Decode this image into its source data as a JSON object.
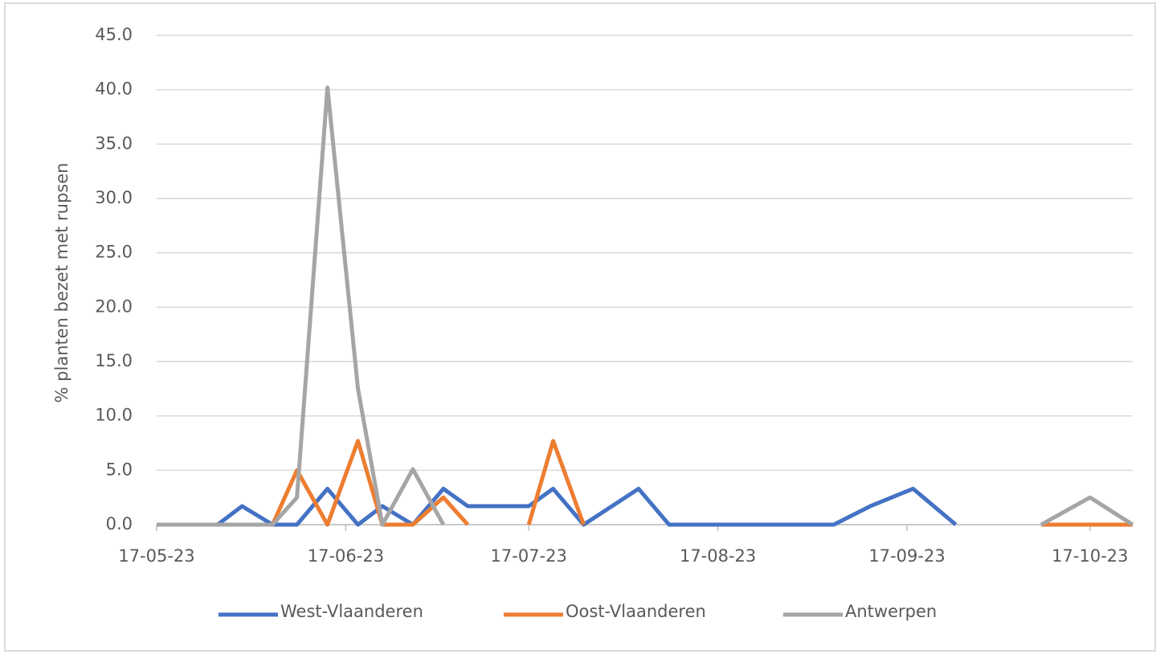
{
  "chart_data": {
    "type": "line",
    "y_label": "% planten bezet met rupsen",
    "x": [
      "2023-05-17",
      "2023-05-27",
      "2023-05-31",
      "2023-06-05",
      "2023-06-09",
      "2023-06-14",
      "2023-06-19",
      "2023-06-23",
      "2023-06-28",
      "2023-07-03",
      "2023-07-07",
      "2023-07-12",
      "2023-07-17",
      "2023-07-21",
      "2023-07-26",
      "2023-08-04",
      "2023-08-09",
      "2023-09-05",
      "2023-09-11",
      "2023-09-18",
      "2023-09-25",
      "2023-10-09",
      "2023-10-17",
      "2023-10-24"
    ],
    "series": [
      {
        "name": "West-Vlaanderen",
        "color": "#4472c4",
        "values": [
          0,
          0,
          1.7,
          0,
          0,
          3.3,
          0,
          1.7,
          0,
          3.3,
          1.7,
          1.7,
          1.7,
          3.3,
          0,
          3.3,
          0,
          0,
          1.7,
          3.3,
          0,
          null,
          null,
          null
        ]
      },
      {
        "name": "Oost-Vlaanderen",
        "color": "#ed7d31",
        "values": [
          null,
          null,
          null,
          0,
          5.0,
          0,
          7.7,
          0,
          0,
          2.5,
          0,
          null,
          0,
          7.7,
          0,
          null,
          null,
          null,
          null,
          null,
          null,
          0,
          0,
          0
        ]
      },
      {
        "name": "Antwerpen",
        "color": "#a5a5a5",
        "values": [
          0,
          0,
          0,
          0,
          2.5,
          40.2,
          12.5,
          0,
          5.1,
          0,
          null,
          null,
          null,
          null,
          null,
          null,
          null,
          null,
          null,
          null,
          null,
          0,
          2.5,
          0
        ]
      }
    ],
    "xlim": [
      "2023-05-17",
      "2023-10-24"
    ],
    "xticks": [
      {
        "value": "2023-05-17",
        "label": "17-05-23"
      },
      {
        "value": "2023-06-17",
        "label": "17-06-23"
      },
      {
        "value": "2023-07-17",
        "label": "17-07-23"
      },
      {
        "value": "2023-08-17",
        "label": "17-08-23"
      },
      {
        "value": "2023-09-17",
        "label": "17-09-23"
      },
      {
        "value": "2023-10-17",
        "label": "17-10-23"
      }
    ],
    "ylim": [
      0,
      45
    ],
    "yticks": [
      {
        "value": 0,
        "label": "0.0"
      },
      {
        "value": 5,
        "label": "5.0"
      },
      {
        "value": 10,
        "label": "10.0"
      },
      {
        "value": 15,
        "label": "15.0"
      },
      {
        "value": 20,
        "label": "20.0"
      },
      {
        "value": 25,
        "label": "25.0"
      },
      {
        "value": 30,
        "label": "30.0"
      },
      {
        "value": 35,
        "label": "35.0"
      },
      {
        "value": 40,
        "label": "40.0"
      },
      {
        "value": 45,
        "label": "45.0"
      }
    ],
    "grid": true,
    "legend": "bottom"
  }
}
